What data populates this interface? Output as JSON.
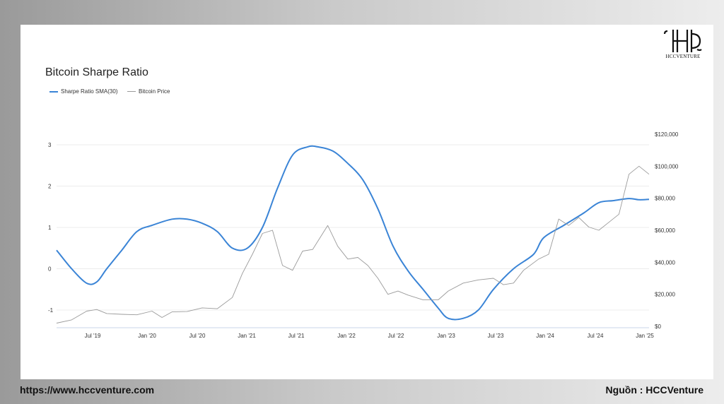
{
  "brand": {
    "logo_text": "HCCVENTURE"
  },
  "footer": {
    "url": "https://www.hccventure.com",
    "source": "Nguồn : HCCVenture"
  },
  "colors": {
    "sharpe": "#3a84d6",
    "price": "#9a9a9a",
    "grid": "#ececec",
    "text": "#333333"
  },
  "chart_data": {
    "type": "line",
    "title": "Bitcoin Sharpe Ratio",
    "legend": [
      "Sharpe Ratio SMA(30)",
      "Bitcoin Price"
    ],
    "x_ticks": [
      "Jul '19",
      "Jan '20",
      "Jul '20",
      "Jan '21",
      "Jul '21",
      "Jan '22",
      "Jul '22",
      "Jan '23",
      "Jul '23",
      "Jan '24",
      "Jul '24",
      "Jan '25"
    ],
    "y_left_ticks": [
      "3",
      "2",
      "1",
      "0",
      "-1"
    ],
    "y_right_ticks": [
      "$120,000",
      "$100,000",
      "$80,000",
      "$60,000",
      "$40,000",
      "$20,000",
      "$0"
    ],
    "ylim_left": [
      -1.4,
      3
    ],
    "ylim_right": [
      0,
      120000
    ],
    "grid": true,
    "series": [
      {
        "name": "Sharpe Ratio SMA(30)",
        "axis": "left",
        "x": [
          2019.15,
          2019.3,
          2019.45,
          2019.55,
          2019.65,
          2019.8,
          2019.95,
          2020.1,
          2020.3,
          2020.45,
          2020.6,
          2020.75,
          2020.9,
          2021.05,
          2021.2,
          2021.35,
          2021.5,
          2021.65,
          2021.75,
          2021.9,
          2022.05,
          2022.2,
          2022.35,
          2022.5,
          2022.65,
          2022.8,
          2022.95,
          2023.05,
          2023.2,
          2023.35,
          2023.5,
          2023.7,
          2023.9,
          2024.0,
          2024.2,
          2024.4,
          2024.55,
          2024.7,
          2024.85,
          2024.95,
          2025.05
        ],
        "y": [
          0.45,
          0.0,
          -0.35,
          -0.32,
          0.0,
          0.45,
          0.9,
          1.05,
          1.2,
          1.2,
          1.1,
          0.9,
          0.5,
          0.5,
          1.0,
          1.95,
          2.75,
          2.95,
          2.95,
          2.85,
          2.55,
          2.15,
          1.45,
          0.55,
          -0.05,
          -0.5,
          -0.95,
          -1.2,
          -1.2,
          -1.0,
          -0.5,
          0.0,
          0.35,
          0.75,
          1.05,
          1.35,
          1.6,
          1.65,
          1.7,
          1.67,
          1.68
        ]
      },
      {
        "name": "Bitcoin Price",
        "axis": "right",
        "x": [
          2019.15,
          2019.3,
          2019.45,
          2019.55,
          2019.65,
          2019.8,
          2019.95,
          2020.1,
          2020.2,
          2020.3,
          2020.45,
          2020.6,
          2020.75,
          2020.9,
          2021.0,
          2021.1,
          2021.2,
          2021.3,
          2021.4,
          2021.5,
          2021.6,
          2021.7,
          2021.85,
          2021.95,
          2022.05,
          2022.15,
          2022.25,
          2022.35,
          2022.45,
          2022.55,
          2022.65,
          2022.8,
          2022.95,
          2023.05,
          2023.2,
          2023.35,
          2023.5,
          2023.6,
          2023.7,
          2023.8,
          2023.95,
          2024.05,
          2024.15,
          2024.25,
          2024.35,
          2024.45,
          2024.55,
          2024.65,
          2024.75,
          2024.85,
          2024.95,
          2025.05
        ],
        "y": [
          2000,
          4000,
          9500,
          10500,
          8000,
          7500,
          7200,
          9500,
          5500,
          9000,
          9200,
          11500,
          11000,
          18000,
          33000,
          45000,
          58000,
          60000,
          38000,
          35000,
          47000,
          48000,
          63000,
          50000,
          42000,
          43000,
          38000,
          30000,
          20000,
          22000,
          19500,
          16500,
          16500,
          22000,
          27000,
          29000,
          30000,
          26000,
          27000,
          35000,
          42000,
          45000,
          67000,
          63000,
          68000,
          62000,
          60000,
          65000,
          70000,
          95000,
          100000,
          95000
        ]
      }
    ]
  }
}
